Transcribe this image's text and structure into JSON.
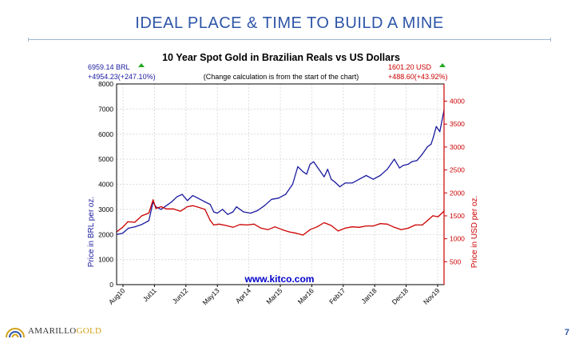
{
  "slide": {
    "title": "IDEAL PLACE & TIME TO BUILD A MINE",
    "page_number": "7",
    "logo": {
      "word1": "AMARILLO",
      "word2": "GOLD"
    }
  },
  "chart_data": {
    "type": "line",
    "title": "10 Year Spot Gold in Brazilian Reals vs US Dollars",
    "subtitle": "(Change calculation is from the start of the chart)",
    "watermark": "www.kitco.com",
    "ylabel_left": "Price in BRL per oz.",
    "ylabel_right": "Price in USD per oz.",
    "ylim_left": [
      0,
      8000
    ],
    "ylim_right": [
      0,
      4375
    ],
    "yticks_left": [
      "0",
      "1000",
      "2000",
      "3000",
      "4000",
      "5000",
      "6000",
      "7000",
      "8000"
    ],
    "yticks_right": [
      "500",
      "1000",
      "1500",
      "2000",
      "2500",
      "3000",
      "3500",
      "4000"
    ],
    "xticks": [
      "Aug10",
      "Jul11",
      "Jun12",
      "May13",
      "Apr14",
      "Mar15",
      "Mar16",
      "Feb17",
      "Jan18",
      "Dec18",
      "Nov19"
    ],
    "xlim": [
      2010.58,
      2019.92
    ],
    "grid": true,
    "summary_left": {
      "price": "6959.14 BRL",
      "change": "+4954.23(+247.10%)",
      "color": "#1a1aa0"
    },
    "summary_right": {
      "price": "1601.20 USD",
      "change": "+488.60(+43.92%)",
      "color": "#cc0000"
    },
    "series": [
      {
        "name": "BRL",
        "axis": "left",
        "color": "#1a1aa0",
        "x": [
          2010.58,
          2010.75,
          2010.92,
          2011.1,
          2011.3,
          2011.5,
          2011.62,
          2011.7,
          2011.85,
          2012.0,
          2012.15,
          2012.3,
          2012.45,
          2012.6,
          2012.75,
          2012.9,
          2013.1,
          2013.25,
          2013.35,
          2013.45,
          2013.6,
          2013.75,
          2013.9,
          2014.0,
          2014.2,
          2014.4,
          2014.6,
          2014.8,
          2015.0,
          2015.2,
          2015.4,
          2015.6,
          2015.75,
          2015.9,
          2016.0,
          2016.1,
          2016.2,
          2016.35,
          2016.5,
          2016.6,
          2016.7,
          2016.8,
          2016.95,
          2017.1,
          2017.3,
          2017.5,
          2017.7,
          2017.9,
          2018.1,
          2018.3,
          2018.5,
          2018.65,
          2018.75,
          2018.9,
          2019.0,
          2019.15,
          2019.3,
          2019.45,
          2019.55,
          2019.62,
          2019.7,
          2019.8,
          2019.92
        ],
        "values": [
          2000,
          2050,
          2250,
          2300,
          2400,
          2550,
          3300,
          3100,
          3000,
          3150,
          3300,
          3500,
          3600,
          3350,
          3550,
          3450,
          3300,
          3200,
          2900,
          2850,
          3000,
          2800,
          2900,
          3100,
          2900,
          2850,
          2950,
          3150,
          3400,
          3450,
          3600,
          4000,
          4700,
          4500,
          4400,
          4800,
          4900,
          4600,
          4300,
          4600,
          4200,
          4100,
          3900,
          4050,
          4050,
          4200,
          4350,
          4200,
          4350,
          4600,
          5000,
          4650,
          4750,
          4800,
          4900,
          4950,
          5200,
          5500,
          5600,
          5900,
          6300,
          6100,
          6959
        ]
      },
      {
        "name": "USD",
        "axis": "right",
        "color": "#cc0000",
        "x": [
          2010.58,
          2010.75,
          2010.9,
          2011.1,
          2011.3,
          2011.5,
          2011.62,
          2011.7,
          2011.85,
          2012.0,
          2012.2,
          2012.4,
          2012.6,
          2012.75,
          2012.9,
          2013.1,
          2013.25,
          2013.35,
          2013.5,
          2013.7,
          2013.9,
          2014.1,
          2014.3,
          2014.5,
          2014.7,
          2014.9,
          2015.1,
          2015.3,
          2015.5,
          2015.7,
          2015.9,
          2016.1,
          2016.3,
          2016.5,
          2016.7,
          2016.9,
          2017.1,
          2017.3,
          2017.5,
          2017.7,
          2017.9,
          2018.1,
          2018.3,
          2018.5,
          2018.7,
          2018.9,
          2019.1,
          2019.3,
          2019.45,
          2019.6,
          2019.75,
          2019.92
        ],
        "values": [
          1150,
          1250,
          1370,
          1360,
          1500,
          1560,
          1850,
          1660,
          1700,
          1650,
          1650,
          1600,
          1700,
          1720,
          1690,
          1640,
          1400,
          1300,
          1320,
          1290,
          1250,
          1310,
          1300,
          1320,
          1230,
          1200,
          1260,
          1200,
          1150,
          1120,
          1080,
          1200,
          1260,
          1350,
          1290,
          1170,
          1230,
          1260,
          1250,
          1280,
          1280,
          1330,
          1320,
          1250,
          1200,
          1230,
          1300,
          1300,
          1400,
          1500,
          1480,
          1601
        ]
      }
    ]
  }
}
